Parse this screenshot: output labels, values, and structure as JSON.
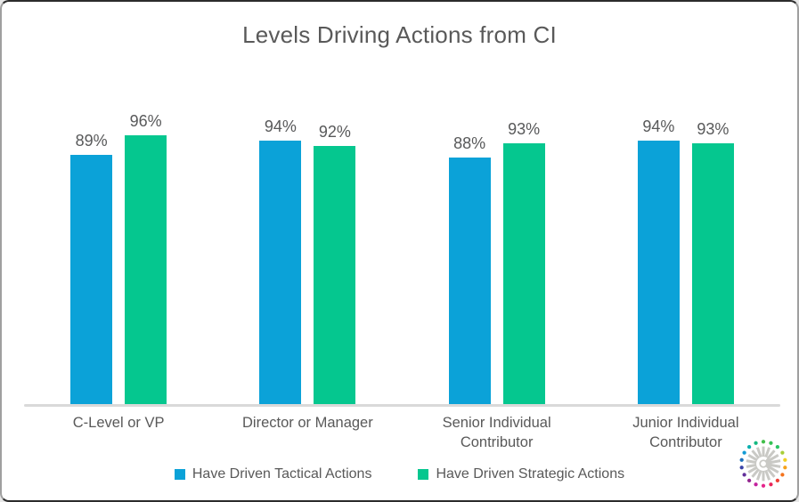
{
  "chart_data": {
    "type": "bar",
    "title": "Levels Driving Actions from CI",
    "categories": [
      "C-Level or VP",
      "Director or Manager",
      "Senior Individual Contributor",
      "Junior Individual Contributor"
    ],
    "series": [
      {
        "name": "Have Driven Tactical Actions",
        "color": "#0BA2D8",
        "values": [
          89,
          94,
          88,
          94
        ]
      },
      {
        "name": "Have Driven Strategic Actions",
        "color": "#05C78F",
        "values": [
          96,
          92,
          93,
          93
        ]
      }
    ],
    "value_suffix": "%",
    "ylim": [
      0,
      100
    ],
    "grid": false,
    "data_labels": true,
    "legend_position": "bottom"
  },
  "styles": {
    "title_color": "#595959",
    "label_color": "#595959",
    "value_label_color": "#58595a",
    "axis_line_color": "#D9D9D9",
    "background": "#FFFFFF"
  },
  "logo": {
    "name": "crayon-starburst",
    "ray_color": "#C9C9C5",
    "dot_colors": [
      "#43BF4B",
      "#35C254",
      "#2BC464",
      "#A8CE38",
      "#EFD024",
      "#F6A21C",
      "#F4731D",
      "#EF4136",
      "#E92558",
      "#E5258C",
      "#C4219E",
      "#93278F",
      "#63309A",
      "#3A43A8",
      "#1D70BB",
      "#139BD5",
      "#09AFAE",
      "#15B981"
    ]
  }
}
